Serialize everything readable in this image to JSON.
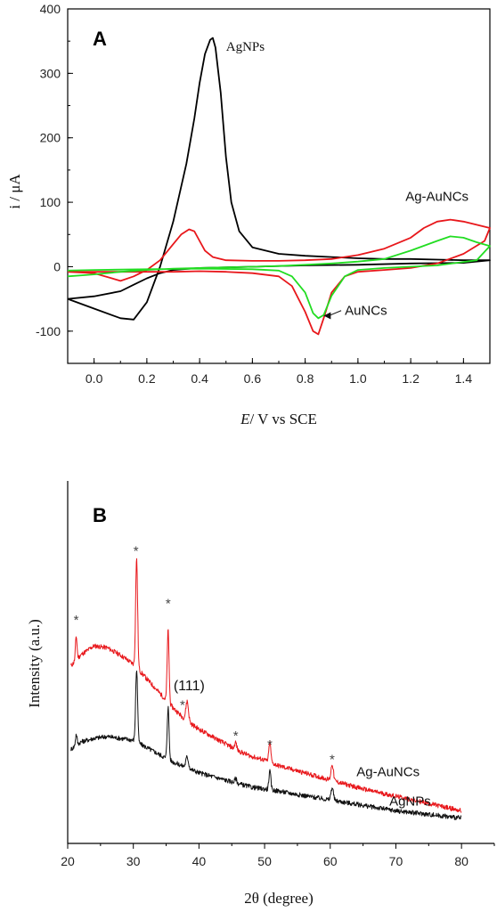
{
  "chart_data": [
    {
      "type": "line",
      "panel_label": "A",
      "xlabel_italic": "E",
      "xlabel_rest": "/ V vs  SCE",
      "ylabel": "i / μA",
      "xlim": [
        -0.1,
        1.5
      ],
      "ylim": [
        -150,
        400
      ],
      "xticks": [
        "0.0",
        "0.2",
        "0.4",
        "0.6",
        "0.8",
        "1.0",
        "1.2",
        "1.4"
      ],
      "xtick_values": [
        0.0,
        0.2,
        0.4,
        0.6,
        0.8,
        1.0,
        1.2,
        1.4
      ],
      "yticks": [
        "-100",
        "0",
        "100",
        "200",
        "300",
        "400"
      ],
      "ytick_values": [
        -100,
        0,
        100,
        200,
        300,
        400
      ],
      "grid": false,
      "annotations": [
        {
          "text": "AgNPs",
          "x": 0.5,
          "y": 335
        },
        {
          "text": "Ag-AuNCs",
          "x": 1.18,
          "y": 102
        },
        {
          "text": "AuNCs",
          "x": 0.95,
          "y": -75
        }
      ],
      "series": [
        {
          "name": "AgNPs",
          "color": "#000000",
          "x": [
            -0.1,
            0.0,
            0.1,
            0.15,
            0.2,
            0.25,
            0.3,
            0.35,
            0.38,
            0.4,
            0.42,
            0.44,
            0.45,
            0.46,
            0.48,
            0.5,
            0.52,
            0.55,
            0.6,
            0.7,
            0.8,
            0.9,
            1.0,
            1.1,
            1.2,
            1.3,
            1.4,
            1.5,
            1.4,
            1.2,
            1.0,
            0.8,
            0.6,
            0.4,
            0.3,
            0.25,
            0.2,
            0.15,
            0.1,
            0.0,
            -0.1
          ],
          "y": [
            -50,
            -65,
            -80,
            -82,
            -55,
            0,
            70,
            160,
            230,
            285,
            330,
            352,
            355,
            340,
            270,
            170,
            100,
            55,
            30,
            20,
            17,
            15,
            13,
            12,
            12,
            11,
            10,
            10,
            6,
            5,
            3,
            2,
            0,
            -2,
            -5,
            -10,
            -18,
            -28,
            -38,
            -46,
            -50
          ]
        },
        {
          "name": "Ag-AuNCs",
          "color": "#e8171b",
          "x": [
            -0.1,
            0.0,
            0.05,
            0.1,
            0.15,
            0.2,
            0.25,
            0.3,
            0.33,
            0.36,
            0.38,
            0.4,
            0.42,
            0.45,
            0.5,
            0.6,
            0.7,
            0.8,
            0.9,
            1.0,
            1.1,
            1.2,
            1.25,
            1.3,
            1.35,
            1.4,
            1.45,
            1.5,
            1.48,
            1.4,
            1.3,
            1.2,
            1.1,
            1.0,
            0.95,
            0.9,
            0.87,
            0.85,
            0.83,
            0.8,
            0.75,
            0.7,
            0.6,
            0.5,
            0.4,
            0.3,
            0.2,
            0.1,
            0.0,
            -0.1
          ],
          "y": [
            -8,
            -10,
            -16,
            -22,
            -15,
            -5,
            10,
            35,
            50,
            58,
            55,
            40,
            25,
            15,
            10,
            9,
            9,
            10,
            12,
            18,
            28,
            45,
            60,
            70,
            73,
            70,
            65,
            60,
            40,
            20,
            5,
            -2,
            -5,
            -8,
            -15,
            -40,
            -80,
            -105,
            -100,
            -70,
            -30,
            -15,
            -10,
            -8,
            -7,
            -8,
            -8,
            -8,
            -8,
            -8
          ]
        },
        {
          "name": "AuNCs",
          "color": "#22dd22",
          "x": [
            -0.1,
            0.0,
            0.1,
            0.2,
            0.3,
            0.4,
            0.5,
            0.6,
            0.7,
            0.8,
            0.9,
            1.0,
            1.1,
            1.2,
            1.3,
            1.35,
            1.4,
            1.45,
            1.5,
            1.45,
            1.3,
            1.1,
            1.0,
            0.95,
            0.9,
            0.87,
            0.85,
            0.83,
            0.8,
            0.75,
            0.7,
            0.6,
            0.4,
            0.2,
            0.0,
            -0.1
          ],
          "y": [
            -15,
            -12,
            -8,
            -5,
            -3,
            -2,
            -1,
            0,
            1,
            3,
            5,
            8,
            12,
            25,
            40,
            47,
            45,
            38,
            32,
            10,
            2,
            -2,
            -5,
            -15,
            -45,
            -75,
            -80,
            -72,
            -40,
            -15,
            -6,
            -4,
            -3,
            -4,
            -5,
            -6
          ]
        }
      ]
    },
    {
      "type": "line",
      "panel_label": "B",
      "xlabel": "2θ (degree)",
      "ylabel": "Intensity (a.u.)",
      "xlim": [
        20,
        85
      ],
      "ylim": [
        0,
        10
      ],
      "xticks": [
        "20",
        "30",
        "40",
        "50",
        "60",
        "70",
        "80"
      ],
      "xtick_values": [
        20,
        30,
        40,
        50,
        60,
        70,
        80
      ],
      "y_tick_labels": false,
      "grid": false,
      "annotations": [
        {
          "text": "(111)",
          "x": 38.5,
          "y": 4.22
        },
        {
          "text": "*",
          "x": 21.3,
          "y": 6.05
        },
        {
          "text": "*",
          "x": 30.4,
          "y": 7.95
        },
        {
          "text": "*",
          "x": 35.3,
          "y": 6.5
        },
        {
          "text": "*",
          "x": 37.5,
          "y": 3.7
        },
        {
          "text": "*",
          "x": 45.6,
          "y": 2.85
        },
        {
          "text": "*",
          "x": 50.8,
          "y": 2.6
        },
        {
          "text": "*",
          "x": 60.3,
          "y": 2.2
        }
      ],
      "series": [
        {
          "name": "Ag-AuNCs",
          "color": "#e8171b",
          "baseline_x": [
            20.5,
            22,
            24,
            26,
            28,
            30,
            32,
            34,
            36,
            38,
            40,
            42,
            44,
            46,
            48,
            50,
            52,
            55,
            60,
            65,
            70,
            75,
            80
          ],
          "baseline_y": [
            4.9,
            5.2,
            5.45,
            5.4,
            5.2,
            4.95,
            4.55,
            4.15,
            3.75,
            3.4,
            3.15,
            2.95,
            2.75,
            2.55,
            2.4,
            2.3,
            2.15,
            2.0,
            1.75,
            1.5,
            1.3,
            1.1,
            0.9
          ],
          "peaks": [
            {
              "x": 21.3,
              "h": 0.65,
              "w": 0.12
            },
            {
              "x": 30.5,
              "h": 3.0,
              "w": 0.15
            },
            {
              "x": 35.3,
              "h": 2.0,
              "w": 0.14
            },
            {
              "x": 38.2,
              "h": 0.55,
              "w": 0.2
            },
            {
              "x": 45.6,
              "h": 0.2,
              "w": 0.15
            },
            {
              "x": 50.8,
              "h": 0.55,
              "w": 0.15
            },
            {
              "x": 60.3,
              "h": 0.45,
              "w": 0.18
            }
          ]
        },
        {
          "name": "AgNPs",
          "color": "#111111",
          "baseline_x": [
            20.5,
            22,
            24,
            26,
            28,
            30,
            32,
            34,
            36,
            38,
            40,
            42,
            44,
            46,
            48,
            50,
            52,
            55,
            60,
            65,
            70,
            75,
            80
          ],
          "baseline_y": [
            2.6,
            2.8,
            2.9,
            2.95,
            2.9,
            2.85,
            2.65,
            2.45,
            2.25,
            2.1,
            1.95,
            1.85,
            1.75,
            1.65,
            1.55,
            1.5,
            1.45,
            1.35,
            1.2,
            1.05,
            0.9,
            0.8,
            0.7
          ],
          "peaks": [
            {
              "x": 21.3,
              "h": 0.3,
              "w": 0.12
            },
            {
              "x": 30.5,
              "h": 2.0,
              "w": 0.15
            },
            {
              "x": 35.3,
              "h": 1.45,
              "w": 0.14
            },
            {
              "x": 38.2,
              "h": 0.3,
              "w": 0.2
            },
            {
              "x": 45.6,
              "h": 0.12,
              "w": 0.15
            },
            {
              "x": 50.8,
              "h": 0.5,
              "w": 0.15
            },
            {
              "x": 60.3,
              "h": 0.35,
              "w": 0.18
            }
          ]
        }
      ],
      "legend_labels": [
        {
          "text": "Ag-AuNCs",
          "x": 64,
          "y": 1.85
        },
        {
          "text": "AgNPs",
          "x": 69,
          "y": 1.05
        }
      ]
    }
  ]
}
